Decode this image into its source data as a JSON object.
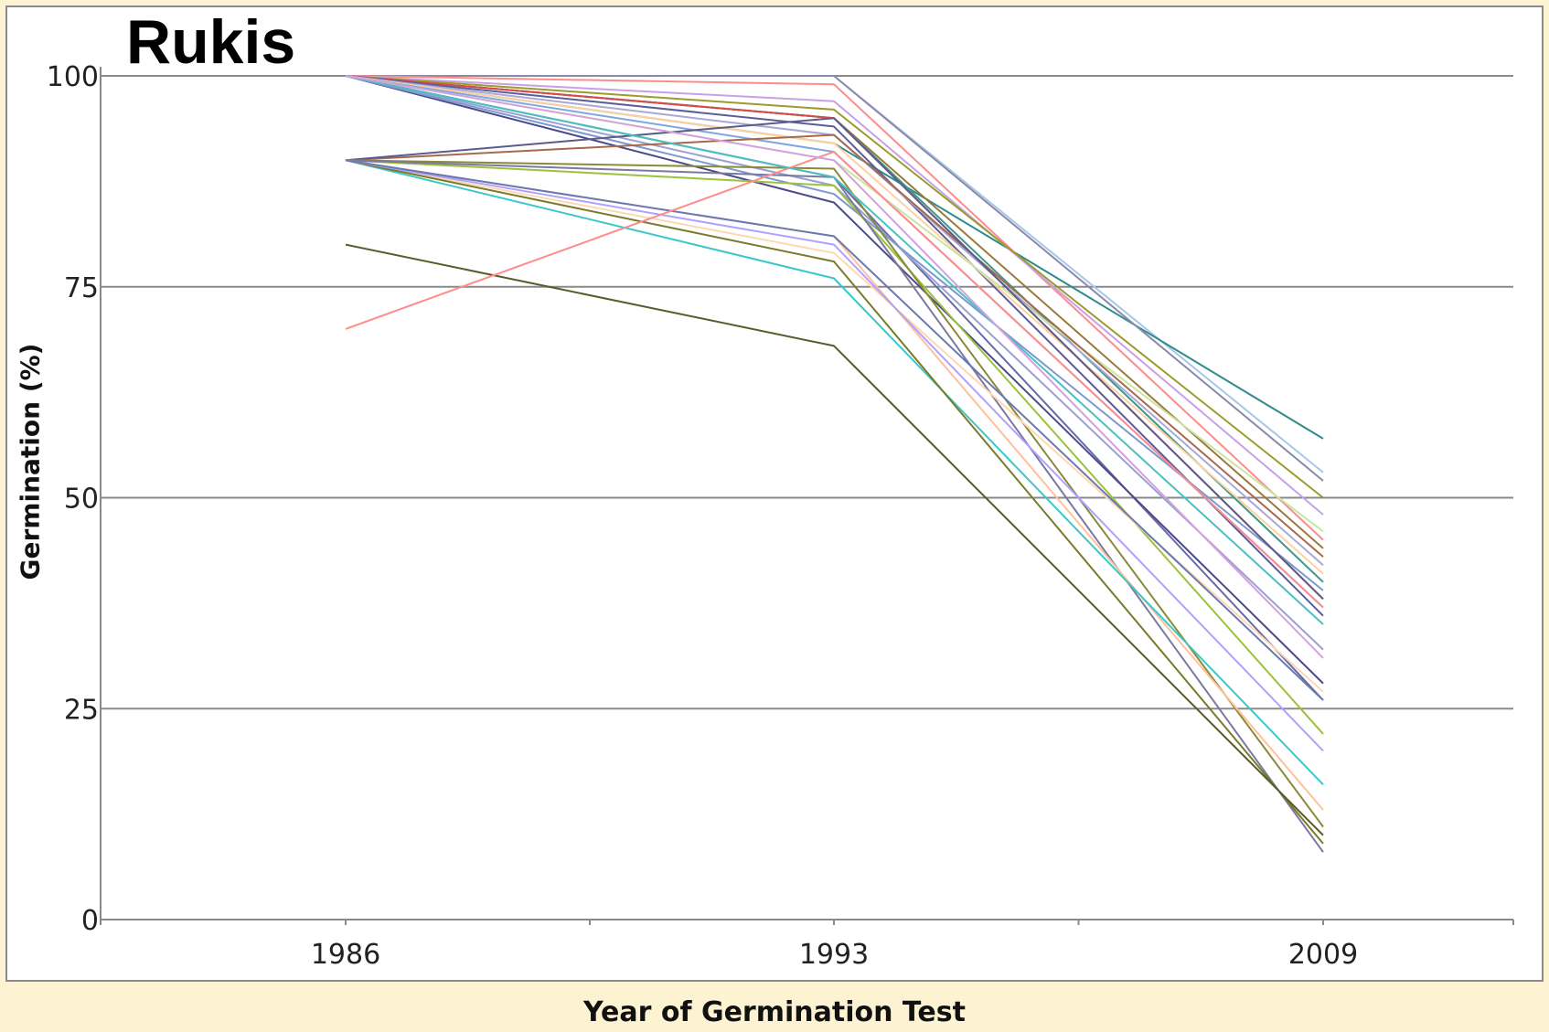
{
  "chart_data": {
    "type": "line",
    "title": "Rukis",
    "xlabel": "Year of Germination Test",
    "ylabel": "Germination (%)",
    "x": [
      "1986",
      "1993",
      "2009"
    ],
    "ylim": [
      0,
      100
    ],
    "yticks": [
      "0",
      "25",
      "50",
      "75",
      "100"
    ],
    "grid": "horizontal",
    "legend": "none",
    "series": [
      {
        "color": "#a7c7ea",
        "values": [
          100,
          100,
          53
        ]
      },
      {
        "color": "#2e8b8b",
        "values": [
          100,
          92,
          57
        ]
      },
      {
        "color": "#8a8aa8",
        "values": [
          100,
          100,
          52
        ]
      },
      {
        "color": "#ff8c8c",
        "values": [
          100,
          99,
          45
        ]
      },
      {
        "color": "#c9a0e8",
        "values": [
          100,
          97,
          48
        ]
      },
      {
        "color": "#9b9b2e",
        "values": [
          100,
          96,
          50
        ]
      },
      {
        "color": "#9a7a3a",
        "values": [
          100,
          95,
          44
        ]
      },
      {
        "color": "#3c9a8c",
        "values": [
          100,
          95,
          40
        ]
      },
      {
        "color": "#d94b4b",
        "values": [
          100,
          95,
          38
        ]
      },
      {
        "color": "#5c5c9a",
        "values": [
          100,
          94,
          36
        ]
      },
      {
        "color": "#a8a8d8",
        "values": [
          100,
          93,
          42
        ]
      },
      {
        "color": "#ffd0a0",
        "values": [
          100,
          92,
          41
        ]
      },
      {
        "color": "#7da7e0",
        "values": [
          100,
          91,
          37
        ]
      },
      {
        "color": "#c8e6a0",
        "values": [
          100,
          90,
          46
        ]
      },
      {
        "color": "#6a6aa8",
        "values": [
          100,
          88,
          26
        ]
      },
      {
        "color": "#9aa0d0",
        "values": [
          100,
          87,
          32
        ]
      },
      {
        "color": "#4b4b8a",
        "values": [
          100,
          85,
          28
        ]
      },
      {
        "color": "#7a9ad0",
        "values": [
          100,
          86,
          39
        ]
      },
      {
        "color": "#a66a4a",
        "values": [
          90,
          93,
          43
        ]
      },
      {
        "color": "#5c5c8a",
        "values": [
          90,
          95,
          38
        ]
      },
      {
        "color": "#9cc23c",
        "values": [
          90,
          87,
          22
        ]
      },
      {
        "color": "#8a8a3a",
        "values": [
          90,
          89,
          11
        ]
      },
      {
        "color": "#7a7aa0",
        "values": [
          90,
          88,
          8
        ]
      },
      {
        "color": "#ffc09a",
        "values": [
          90,
          81,
          13
        ]
      },
      {
        "color": "#ffd8b0",
        "values": [
          90,
          79,
          27
        ]
      },
      {
        "color": "#3ac8c8",
        "values": [
          90,
          76,
          16
        ]
      },
      {
        "color": "#7a7a2a",
        "values": [
          90,
          78,
          9
        ]
      },
      {
        "color": "#b0a0ff",
        "values": [
          90,
          80,
          20
        ]
      },
      {
        "color": "#6a7ab0",
        "values": [
          90,
          81,
          26
        ]
      },
      {
        "color": "#5a5a2a",
        "values": [
          80,
          68,
          10
        ]
      },
      {
        "color": "#ff8c8c",
        "values": [
          70,
          91,
          37
        ]
      },
      {
        "color": "#4cc0c0",
        "values": [
          100,
          88,
          35
        ]
      },
      {
        "color": "#d4a0e0",
        "values": [
          100,
          90,
          31
        ]
      }
    ]
  }
}
